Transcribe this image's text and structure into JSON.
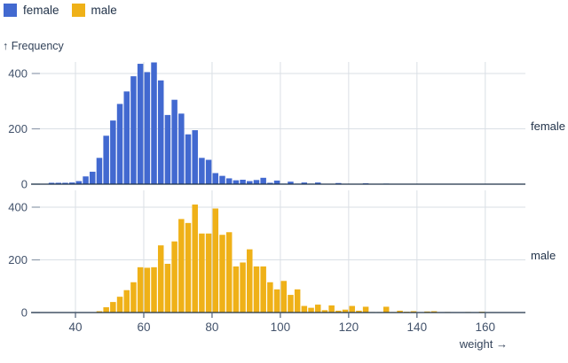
{
  "legend": {
    "items": [
      {
        "label": "female",
        "color": "#4269d0"
      },
      {
        "label": "male",
        "color": "#efb118"
      }
    ]
  },
  "axes": {
    "y_label": "↑ Frequency",
    "x_label": "weight →"
  },
  "chart_data": {
    "type": "bar",
    "subtype": "faceted-histogram",
    "title": "",
    "xlabel": "weight",
    "ylabel": "Frequency",
    "grid": true,
    "legend_position": "top-left",
    "xlim": [
      27,
      172
    ],
    "x_ticks": [
      40,
      60,
      80,
      100,
      120,
      140,
      160
    ],
    "y_ticks": [
      0,
      200,
      400
    ],
    "x_bin_start": 30,
    "x_bin_width": 2,
    "facets": [
      {
        "name": "female",
        "color": "#4269d0",
        "ylim": [
          0,
          450
        ],
        "counts": [
          0,
          5,
          5,
          5,
          6,
          11,
          28,
          45,
          95,
          175,
          230,
          290,
          335,
          390,
          435,
          405,
          440,
          375,
          250,
          305,
          255,
          180,
          195,
          95,
          88,
          40,
          30,
          21,
          14,
          16,
          11,
          15,
          23,
          5,
          13,
          2,
          9,
          2,
          6,
          2,
          6,
          0,
          0,
          4,
          0,
          0,
          0,
          3,
          0,
          0,
          2,
          0,
          0,
          0,
          0,
          0,
          0,
          0,
          0,
          0,
          0,
          0,
          0,
          0,
          0,
          0,
          0,
          0,
          0,
          0,
          0
        ]
      },
      {
        "name": "male",
        "color": "#efb118",
        "ylim": [
          0,
          420
        ],
        "counts": [
          0,
          0,
          0,
          0,
          0,
          0,
          0,
          0,
          5,
          20,
          40,
          60,
          85,
          115,
          172,
          170,
          172,
          255,
          185,
          270,
          355,
          340,
          410,
          300,
          300,
          395,
          295,
          305,
          175,
          190,
          240,
          175,
          175,
          115,
          88,
          120,
          67,
          88,
          25,
          18,
          30,
          9,
          27,
          7,
          11,
          25,
          7,
          22,
          2,
          2,
          22,
          2,
          7,
          3,
          5,
          0,
          4,
          5,
          0,
          2,
          0,
          0,
          2,
          0,
          3,
          0,
          0,
          0,
          0,
          0,
          0
        ]
      }
    ]
  },
  "colors": {
    "background": "#ffffff",
    "grid": "#dadfe5",
    "axis": "#1d3248",
    "tick_text": "#42526b",
    "label_text": "#22334a",
    "y_tick_dash": "#8f9bac"
  }
}
